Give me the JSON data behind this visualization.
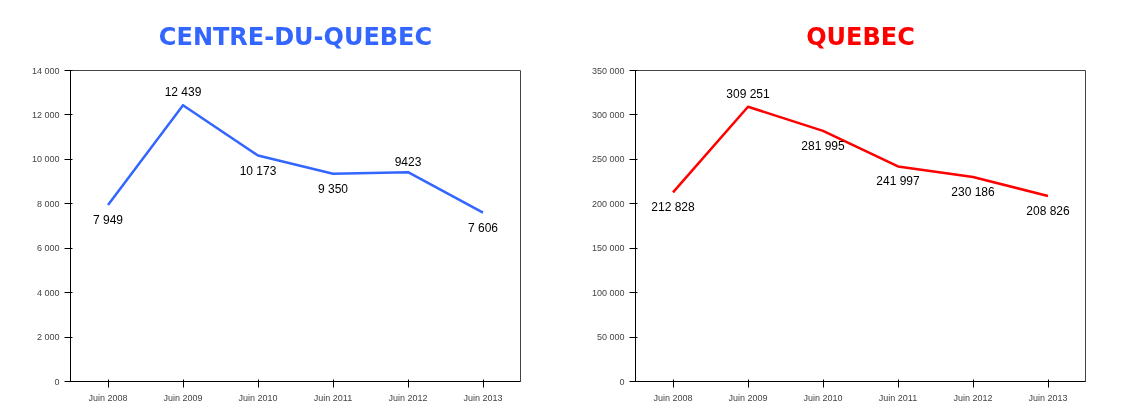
{
  "chart_data": [
    {
      "type": "line",
      "title": "CENTRE-DU-QUEBEC",
      "categories": [
        "Juin 2008",
        "Juin 2009",
        "Juin 2010",
        "Juin 2011",
        "Juin 2012",
        "Juin 2013"
      ],
      "series": [
        {
          "color": "#3366ff",
          "values": [
            7949,
            12439,
            10173,
            9350,
            9423,
            7606
          ],
          "value_labels": [
            "7 949",
            "12 439",
            "10 173",
            "9 350",
            "9423",
            "7 606"
          ]
        }
      ],
      "ylim": [
        0,
        14000
      ],
      "yticks": [
        {
          "value": 0,
          "label": "0"
        },
        {
          "value": 2000,
          "label": "2 000"
        },
        {
          "value": 4000,
          "label": "4 000"
        },
        {
          "value": 6000,
          "label": "6 000"
        },
        {
          "value": 8000,
          "label": "8 000"
        },
        {
          "value": 10000,
          "label": "10 000"
        },
        {
          "value": 12000,
          "label": "12 000"
        },
        {
          "value": 14000,
          "label": "14 000"
        }
      ],
      "grid": false,
      "marker": "none",
      "line_style": "solid"
    },
    {
      "type": "line",
      "title": "QUEBEC",
      "categories": [
        "Juin 2008",
        "Juin 2009",
        "Juin 2010",
        "Juin 2011",
        "Juin 2012",
        "Juin 2013"
      ],
      "series": [
        {
          "color": "#ff0000",
          "values": [
            212828,
            309251,
            281995,
            241997,
            230186,
            208826
          ],
          "value_labels": [
            "212 828",
            "309 251",
            "281 995",
            "241 997",
            "230 186",
            "208 826"
          ]
        }
      ],
      "ylim": [
        0,
        350000
      ],
      "yticks": [
        {
          "value": 0,
          "label": "0"
        },
        {
          "value": 50000,
          "label": "50 000"
        },
        {
          "value": 100000,
          "label": "100 000"
        },
        {
          "value": 150000,
          "label": "150 000"
        },
        {
          "value": 200000,
          "label": "200 000"
        },
        {
          "value": 250000,
          "label": "250 000"
        },
        {
          "value": 300000,
          "label": "300 000"
        },
        {
          "value": 350000,
          "label": "350 000"
        }
      ],
      "grid": false,
      "marker": "none",
      "line_style": "solid"
    }
  ]
}
